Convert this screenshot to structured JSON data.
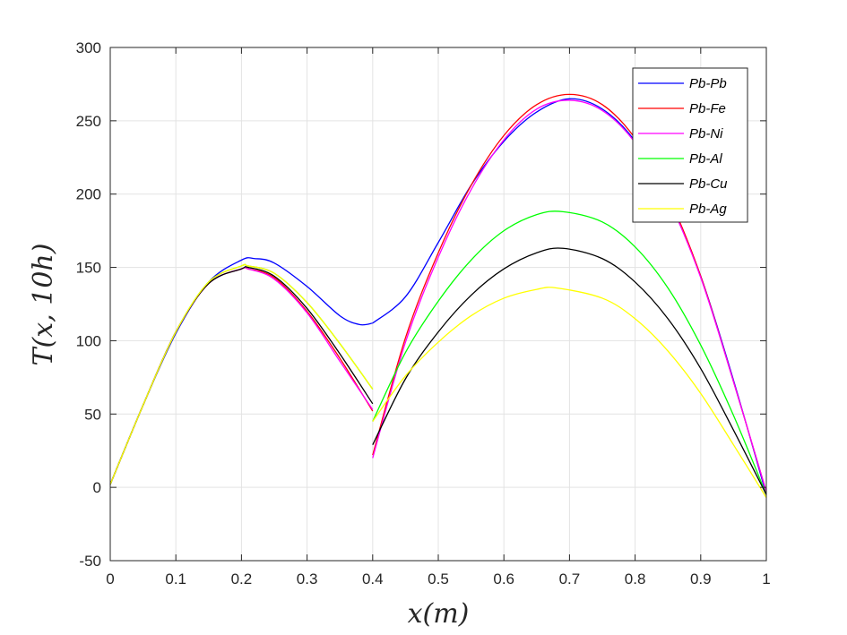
{
  "chart_data": {
    "type": "line",
    "xlabel": "x(m)",
    "ylabel": "T(x, 10h)",
    "xlim": [
      0,
      1
    ],
    "ylim": [
      -50,
      300
    ],
    "xticks": [
      "0",
      "0.1",
      "0.2",
      "0.3",
      "0.4",
      "0.5",
      "0.6",
      "0.7",
      "0.8",
      "0.9",
      "1"
    ],
    "yticks": [
      "-50",
      "0",
      "50",
      "100",
      "150",
      "200",
      "250",
      "300"
    ],
    "xtick_values": [
      0,
      0.1,
      0.2,
      0.3,
      0.4,
      0.5,
      0.6,
      0.7,
      0.8,
      0.9,
      1
    ],
    "ytick_values": [
      -50,
      0,
      50,
      100,
      150,
      200,
      250,
      300
    ],
    "grid": true,
    "legend_position": "top-right",
    "series": [
      {
        "name": "Pb-Pb",
        "color": "#0000ff",
        "segments": [
          {
            "x": [
              0,
              0.05,
              0.1,
              0.15,
              0.2,
              0.22,
              0.25,
              0.3,
              0.35,
              0.38,
              0.4
            ],
            "y": [
              2,
              56,
              105,
              140,
              155,
              156,
              153,
              137,
              117,
              111,
              112
            ]
          },
          {
            "x": [
              0.4,
              0.45,
              0.5,
              0.55,
              0.6,
              0.65,
              0.7,
              0.75,
              0.8,
              0.85,
              0.9,
              0.95,
              1
            ],
            "y": [
              112,
              130,
              167,
              206,
              236,
              256,
              265,
              258,
              236,
              197,
              144,
              73,
              -5
            ]
          }
        ]
      },
      {
        "name": "Pb-Fe",
        "color": "#ff0000",
        "segments": [
          {
            "x": [
              0,
              0.05,
              0.1,
              0.15,
              0.2,
              0.21,
              0.25,
              0.3,
              0.35,
              0.4
            ],
            "y": [
              2,
              56,
              106,
              139,
              149,
              149,
              143,
              120,
              88,
              52
            ]
          },
          {
            "x": [
              0.4,
              0.45,
              0.5,
              0.55,
              0.6,
              0.65,
              0.7,
              0.75,
              0.8,
              0.85,
              0.9,
              0.95,
              1
            ],
            "y": [
              22,
              102,
              160,
              206,
              240,
              261,
              268,
              261,
              238,
              199,
              144,
              72,
              -3
            ]
          }
        ]
      },
      {
        "name": "Pb-Ni",
        "color": "#ff00ff",
        "segments": [
          {
            "x": [
              0,
              0.05,
              0.1,
              0.15,
              0.2,
              0.21,
              0.25,
              0.3,
              0.35,
              0.4
            ],
            "y": [
              2,
              56,
              106,
              139,
              149,
              149,
              142,
              119,
              86,
              53
            ]
          },
          {
            "x": [
              0.4,
              0.45,
              0.5,
              0.55,
              0.6,
              0.65,
              0.7,
              0.75,
              0.8,
              0.85,
              0.9,
              0.95,
              1
            ],
            "y": [
              20,
              99,
              157,
              203,
              237,
              258,
              264,
              257,
              235,
              197,
              143,
              72,
              -3
            ]
          }
        ]
      },
      {
        "name": "Pb-Al",
        "color": "#00ff00",
        "segments": [
          {
            "x": [
              0,
              0.05,
              0.1,
              0.15,
              0.2,
              0.21,
              0.25,
              0.3,
              0.35,
              0.4
            ],
            "y": [
              2,
              56,
              106,
              140,
              151,
              151,
              146,
              126,
              98,
              67
            ]
          },
          {
            "x": [
              0.4,
              0.45,
              0.5,
              0.55,
              0.6,
              0.65,
              0.69,
              0.75,
              0.8,
              0.85,
              0.9,
              0.95,
              1
            ],
            "y": [
              45,
              92,
              127,
              155,
              175,
              186,
              188,
              181,
              164,
              136,
              97,
              49,
              -5
            ]
          }
        ]
      },
      {
        "name": "Pb-Cu",
        "color": "#000000",
        "segments": [
          {
            "x": [
              0,
              0.05,
              0.1,
              0.15,
              0.2,
              0.21,
              0.25,
              0.3,
              0.35,
              0.4
            ],
            "y": [
              2,
              56,
              106,
              139,
              149,
              150,
              144,
              122,
              91,
              57
            ]
          },
          {
            "x": [
              0.4,
              0.45,
              0.5,
              0.55,
              0.6,
              0.65,
              0.69,
              0.75,
              0.8,
              0.85,
              0.9,
              0.95,
              1
            ],
            "y": [
              29,
              74,
              106,
              131,
              149,
              160,
              163,
              156,
              140,
              115,
              81,
              39,
              -5
            ]
          }
        ]
      },
      {
        "name": "Pb-Ag",
        "color": "#ffff00",
        "segments": [
          {
            "x": [
              0,
              0.05,
              0.1,
              0.15,
              0.2,
              0.21,
              0.25,
              0.3,
              0.35,
              0.4
            ],
            "y": [
              2,
              56,
              106,
              140,
              151,
              151,
              146,
              126,
              98,
              67
            ]
          },
          {
            "x": [
              0.4,
              0.45,
              0.5,
              0.55,
              0.6,
              0.65,
              0.68,
              0.75,
              0.8,
              0.85,
              0.9,
              0.95,
              1
            ],
            "y": [
              45,
              76,
              99,
              117,
              129,
              135,
              136,
              129,
              115,
              93,
              64,
              29,
              -7
            ]
          }
        ]
      }
    ]
  }
}
